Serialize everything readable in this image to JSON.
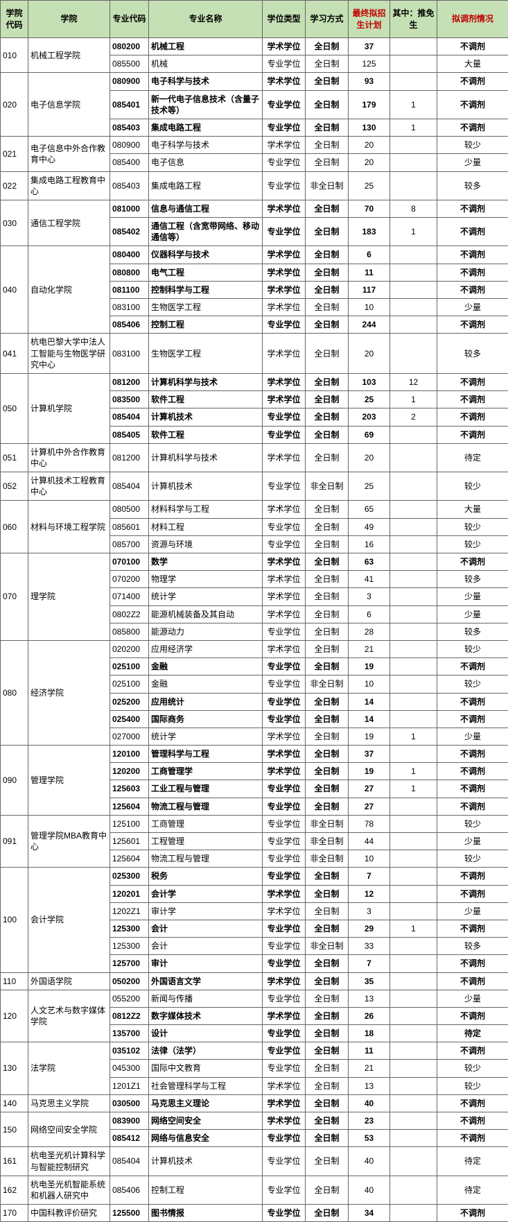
{
  "headers": {
    "collegeCode": "学院代码",
    "college": "学院",
    "majorCode": "专业代码",
    "majorName": "专业名称",
    "degree": "学位类型",
    "mode": "学习方式",
    "plan": "最终拟招生计划",
    "rec": "其中：推免生",
    "adjust": "拟调剂情况"
  },
  "headerStyle": {
    "redColumns": [
      "plan",
      "adjust"
    ]
  },
  "groups": [
    {
      "collegeCode": "010",
      "college": "机械工程学院",
      "rows": [
        {
          "majorCode": "080200",
          "majorName": "机械工程",
          "degree": "学术学位",
          "mode": "全日制",
          "plan": "37",
          "rec": "",
          "adjust": "不调剂",
          "bold": true
        },
        {
          "majorCode": "085500",
          "majorName": "机械",
          "degree": "专业学位",
          "mode": "全日制",
          "plan": "125",
          "rec": "",
          "adjust": "大量"
        }
      ]
    },
    {
      "collegeCode": "020",
      "college": "电子信息学院",
      "rows": [
        {
          "majorCode": "080900",
          "majorName": "电子科学与技术",
          "degree": "学术学位",
          "mode": "全日制",
          "plan": "93",
          "rec": "",
          "adjust": "不调剂",
          "bold": true
        },
        {
          "majorCode": "085401",
          "majorName": "新一代电子信息技术（含量子技术等）",
          "degree": "专业学位",
          "mode": "全日制",
          "plan": "179",
          "rec": "1",
          "adjust": "不调剂",
          "bold": true
        },
        {
          "majorCode": "085403",
          "majorName": "集成电路工程",
          "degree": "专业学位",
          "mode": "全日制",
          "plan": "130",
          "rec": "1",
          "adjust": "不调剂",
          "bold": true
        }
      ]
    },
    {
      "collegeCode": "021",
      "college": "电子信息中外合作教育中心",
      "rows": [
        {
          "majorCode": "080900",
          "majorName": "电子科学与技术",
          "degree": "学术学位",
          "mode": "全日制",
          "plan": "20",
          "rec": "",
          "adjust": "较少"
        },
        {
          "majorCode": "085400",
          "majorName": "电子信息",
          "degree": "专业学位",
          "mode": "全日制",
          "plan": "20",
          "rec": "",
          "adjust": "少量"
        }
      ]
    },
    {
      "collegeCode": "022",
      "college": "集成电路工程教育中心",
      "rows": [
        {
          "majorCode": "085403",
          "majorName": "集成电路工程",
          "degree": "专业学位",
          "mode": "非全日制",
          "plan": "25",
          "rec": "",
          "adjust": "较多"
        }
      ]
    },
    {
      "collegeCode": "030",
      "college": "通信工程学院",
      "rows": [
        {
          "majorCode": "081000",
          "majorName": "信息与通信工程",
          "degree": "学术学位",
          "mode": "全日制",
          "plan": "70",
          "rec": "8",
          "adjust": "不调剂",
          "bold": true
        },
        {
          "majorCode": "085402",
          "majorName": "通信工程（含宽带网络、移动通信等）",
          "degree": "专业学位",
          "mode": "全日制",
          "plan": "183",
          "rec": "1",
          "adjust": "不调剂",
          "bold": true
        }
      ]
    },
    {
      "collegeCode": "040",
      "college": "自动化学院",
      "rows": [
        {
          "majorCode": "080400",
          "majorName": "仪器科学与技术",
          "degree": "学术学位",
          "mode": "全日制",
          "plan": "6",
          "rec": "",
          "adjust": "不调剂",
          "bold": true
        },
        {
          "majorCode": "080800",
          "majorName": "电气工程",
          "degree": "学术学位",
          "mode": "全日制",
          "plan": "11",
          "rec": "",
          "adjust": "不调剂",
          "bold": true
        },
        {
          "majorCode": "081100",
          "majorName": "控制科学与工程",
          "degree": "学术学位",
          "mode": "全日制",
          "plan": "117",
          "rec": "",
          "adjust": "不调剂",
          "bold": true
        },
        {
          "majorCode": "083100",
          "majorName": "生物医学工程",
          "degree": "学术学位",
          "mode": "全日制",
          "plan": "10",
          "rec": "",
          "adjust": "少量"
        },
        {
          "majorCode": "085406",
          "majorName": "控制工程",
          "degree": "专业学位",
          "mode": "全日制",
          "plan": "244",
          "rec": "",
          "adjust": "不调剂",
          "bold": true
        }
      ]
    },
    {
      "collegeCode": "041",
      "college": "杭电巴黎大学中法人工智能与生物医学研究中心",
      "rows": [
        {
          "majorCode": "083100",
          "majorName": "生物医学工程",
          "degree": "学术学位",
          "mode": "全日制",
          "plan": "20",
          "rec": "",
          "adjust": "较多"
        }
      ]
    },
    {
      "collegeCode": "050",
      "college": "计算机学院",
      "rows": [
        {
          "majorCode": "081200",
          "majorName": "计算机科学与技术",
          "degree": "学术学位",
          "mode": "全日制",
          "plan": "103",
          "rec": "12",
          "adjust": "不调剂",
          "bold": true
        },
        {
          "majorCode": "083500",
          "majorName": "软件工程",
          "degree": "学术学位",
          "mode": "全日制",
          "plan": "25",
          "rec": "1",
          "adjust": "不调剂",
          "bold": true
        },
        {
          "majorCode": "085404",
          "majorName": "计算机技术",
          "degree": "专业学位",
          "mode": "全日制",
          "plan": "203",
          "rec": "2",
          "adjust": "不调剂",
          "bold": true
        },
        {
          "majorCode": "085405",
          "majorName": "软件工程",
          "degree": "专业学位",
          "mode": "全日制",
          "plan": "69",
          "rec": "",
          "adjust": "不调剂",
          "bold": true
        }
      ]
    },
    {
      "collegeCode": "051",
      "college": "计算机中外合作教育中心",
      "rows": [
        {
          "majorCode": "081200",
          "majorName": "计算机科学与技术",
          "degree": "学术学位",
          "mode": "全日制",
          "plan": "20",
          "rec": "",
          "adjust": "待定"
        }
      ]
    },
    {
      "collegeCode": "052",
      "college": "计算机技术工程教育中心",
      "rows": [
        {
          "majorCode": "085404",
          "majorName": "计算机技术",
          "degree": "专业学位",
          "mode": "非全日制",
          "plan": "25",
          "rec": "",
          "adjust": "较少"
        }
      ]
    },
    {
      "collegeCode": "060",
      "college": "材料与环境工程学院",
      "rows": [
        {
          "majorCode": "080500",
          "majorName": "材料科学与工程",
          "degree": "学术学位",
          "mode": "全日制",
          "plan": "65",
          "rec": "",
          "adjust": "大量"
        },
        {
          "majorCode": "085601",
          "majorName": "材料工程",
          "degree": "专业学位",
          "mode": "全日制",
          "plan": "49",
          "rec": "",
          "adjust": "较少"
        },
        {
          "majorCode": "085700",
          "majorName": "资源与环境",
          "degree": "专业学位",
          "mode": "全日制",
          "plan": "16",
          "rec": "",
          "adjust": "较少"
        }
      ]
    },
    {
      "collegeCode": "070",
      "college": "理学院",
      "rows": [
        {
          "majorCode": "070100",
          "majorName": "数学",
          "degree": "学术学位",
          "mode": "全日制",
          "plan": "63",
          "rec": "",
          "adjust": "不调剂",
          "bold": true
        },
        {
          "majorCode": "070200",
          "majorName": "物理学",
          "degree": "学术学位",
          "mode": "全日制",
          "plan": "41",
          "rec": "",
          "adjust": "较多"
        },
        {
          "majorCode": "071400",
          "majorName": "统计学",
          "degree": "学术学位",
          "mode": "全日制",
          "plan": "3",
          "rec": "",
          "adjust": "少量"
        },
        {
          "majorCode": "0802Z2",
          "majorName": "能源机械装备及其自动",
          "degree": "学术学位",
          "mode": "全日制",
          "plan": "6",
          "rec": "",
          "adjust": "少量"
        },
        {
          "majorCode": "085800",
          "majorName": "能源动力",
          "degree": "专业学位",
          "mode": "全日制",
          "plan": "28",
          "rec": "",
          "adjust": "较多"
        }
      ]
    },
    {
      "collegeCode": "080",
      "college": "经济学院",
      "rows": [
        {
          "majorCode": "020200",
          "majorName": "应用经济学",
          "degree": "学术学位",
          "mode": "全日制",
          "plan": "21",
          "rec": "",
          "adjust": "较少"
        },
        {
          "majorCode": "025100",
          "majorName": "金融",
          "degree": "专业学位",
          "mode": "全日制",
          "plan": "19",
          "rec": "",
          "adjust": "不调剂",
          "bold": true
        },
        {
          "majorCode": "025100",
          "majorName": "金融",
          "degree": "专业学位",
          "mode": "非全日制",
          "plan": "10",
          "rec": "",
          "adjust": "较少"
        },
        {
          "majorCode": "025200",
          "majorName": "应用统计",
          "degree": "专业学位",
          "mode": "全日制",
          "plan": "14",
          "rec": "",
          "adjust": "不调剂",
          "bold": true
        },
        {
          "majorCode": "025400",
          "majorName": "国际商务",
          "degree": "专业学位",
          "mode": "全日制",
          "plan": "14",
          "rec": "",
          "adjust": "不调剂",
          "bold": true
        },
        {
          "majorCode": "027000",
          "majorName": "统计学",
          "degree": "学术学位",
          "mode": "全日制",
          "plan": "19",
          "rec": "1",
          "adjust": "少量"
        }
      ]
    },
    {
      "collegeCode": "090",
      "college": "管理学院",
      "rows": [
        {
          "majorCode": "120100",
          "majorName": "管理科学与工程",
          "degree": "学术学位",
          "mode": "全日制",
          "plan": "37",
          "rec": "",
          "adjust": "不调剂",
          "bold": true
        },
        {
          "majorCode": "120200",
          "majorName": "工商管理学",
          "degree": "学术学位",
          "mode": "全日制",
          "plan": "19",
          "rec": "1",
          "adjust": "不调剂",
          "bold": true
        },
        {
          "majorCode": "125603",
          "majorName": "工业工程与管理",
          "degree": "专业学位",
          "mode": "全日制",
          "plan": "27",
          "rec": "1",
          "adjust": "不调剂",
          "bold": true
        },
        {
          "majorCode": "125604",
          "majorName": "物流工程与管理",
          "degree": "专业学位",
          "mode": "全日制",
          "plan": "27",
          "rec": "",
          "adjust": "不调剂",
          "bold": true
        }
      ]
    },
    {
      "collegeCode": "091",
      "college": "管理学院MBA教育中心",
      "rows": [
        {
          "majorCode": "125100",
          "majorName": "工商管理",
          "degree": "专业学位",
          "mode": "非全日制",
          "plan": "78",
          "rec": "",
          "adjust": "较少"
        },
        {
          "majorCode": "125601",
          "majorName": "工程管理",
          "degree": "专业学位",
          "mode": "非全日制",
          "plan": "44",
          "rec": "",
          "adjust": "少量"
        },
        {
          "majorCode": "125604",
          "majorName": "物流工程与管理",
          "degree": "专业学位",
          "mode": "非全日制",
          "plan": "10",
          "rec": "",
          "adjust": "较少"
        }
      ]
    },
    {
      "collegeCode": "100",
      "college": "会计学院",
      "rows": [
        {
          "majorCode": "025300",
          "majorName": "税务",
          "degree": "专业学位",
          "mode": "全日制",
          "plan": "7",
          "rec": "",
          "adjust": "不调剂",
          "bold": true
        },
        {
          "majorCode": "120201",
          "majorName": "会计学",
          "degree": "学术学位",
          "mode": "全日制",
          "plan": "12",
          "rec": "",
          "adjust": "不调剂",
          "bold": true
        },
        {
          "majorCode": "1202Z1",
          "majorName": "审计学",
          "degree": "学术学位",
          "mode": "全日制",
          "plan": "3",
          "rec": "",
          "adjust": "少量"
        },
        {
          "majorCode": "125300",
          "majorName": "会计",
          "degree": "专业学位",
          "mode": "全日制",
          "plan": "29",
          "rec": "1",
          "adjust": "不调剂",
          "bold": true
        },
        {
          "majorCode": "125300",
          "majorName": "会计",
          "degree": "专业学位",
          "mode": "非全日制",
          "plan": "33",
          "rec": "",
          "adjust": "较多"
        },
        {
          "majorCode": "125700",
          "majorName": "审计",
          "degree": "专业学位",
          "mode": "全日制",
          "plan": "7",
          "rec": "",
          "adjust": "不调剂",
          "bold": true
        }
      ]
    },
    {
      "collegeCode": "110",
      "college": "外国语学院",
      "rows": [
        {
          "majorCode": "050200",
          "majorName": "外国语言文学",
          "degree": "学术学位",
          "mode": "全日制",
          "plan": "35",
          "rec": "",
          "adjust": "不调剂",
          "bold": true
        }
      ]
    },
    {
      "collegeCode": "120",
      "college": "人文艺术与数字媒体学院",
      "rows": [
        {
          "majorCode": "055200",
          "majorName": "新闻与传播",
          "degree": "专业学位",
          "mode": "全日制",
          "plan": "13",
          "rec": "",
          "adjust": "少量"
        },
        {
          "majorCode": "0812Z2",
          "majorName": "数字媒体技术",
          "degree": "学术学位",
          "mode": "全日制",
          "plan": "26",
          "rec": "",
          "adjust": "不调剂",
          "bold": true
        },
        {
          "majorCode": "135700",
          "majorName": "设计",
          "degree": "专业学位",
          "mode": "全日制",
          "plan": "18",
          "rec": "",
          "adjust": "待定",
          "bold": true
        }
      ]
    },
    {
      "collegeCode": "130",
      "college": "法学院",
      "rows": [
        {
          "majorCode": "035102",
          "majorName": "法律（法学）",
          "degree": "专业学位",
          "mode": "全日制",
          "plan": "11",
          "rec": "",
          "adjust": "不调剂",
          "bold": true
        },
        {
          "majorCode": "045300",
          "majorName": "国际中文教育",
          "degree": "专业学位",
          "mode": "全日制",
          "plan": "21",
          "rec": "",
          "adjust": "较少"
        },
        {
          "majorCode": "1201Z1",
          "majorName": "社会管理科学与工程",
          "degree": "学术学位",
          "mode": "全日制",
          "plan": "13",
          "rec": "",
          "adjust": "较少"
        }
      ]
    },
    {
      "collegeCode": "140",
      "college": "马克思主义学院",
      "rows": [
        {
          "majorCode": "030500",
          "majorName": "马克思主义理论",
          "degree": "学术学位",
          "mode": "全日制",
          "plan": "40",
          "rec": "",
          "adjust": "不调剂",
          "bold": true
        }
      ]
    },
    {
      "collegeCode": "150",
      "college": "网络空间安全学院",
      "rows": [
        {
          "majorCode": "083900",
          "majorName": "网络空间安全",
          "degree": "学术学位",
          "mode": "全日制",
          "plan": "23",
          "rec": "",
          "adjust": "不调剂",
          "bold": true
        },
        {
          "majorCode": "085412",
          "majorName": "网络与信息安全",
          "degree": "专业学位",
          "mode": "全日制",
          "plan": "53",
          "rec": "",
          "adjust": "不调剂",
          "bold": true
        }
      ]
    },
    {
      "collegeCode": "161",
      "college": "杭电圣光机计算科学与智能控制研究",
      "rows": [
        {
          "majorCode": "085404",
          "majorName": "计算机技术",
          "degree": "专业学位",
          "mode": "全日制",
          "plan": "40",
          "rec": "",
          "adjust": "待定"
        }
      ]
    },
    {
      "collegeCode": "162",
      "college": "杭电圣光机智能系统和机器人研究中",
      "rows": [
        {
          "majorCode": "085406",
          "majorName": "控制工程",
          "degree": "专业学位",
          "mode": "全日制",
          "plan": "40",
          "rec": "",
          "adjust": "待定"
        }
      ]
    },
    {
      "collegeCode": "170",
      "college": "中国科教评价研究",
      "rows": [
        {
          "majorCode": "125500",
          "majorName": "图书情报",
          "degree": "专业学位",
          "mode": "全日制",
          "plan": "34",
          "rec": "",
          "adjust": "不调剂",
          "bold": true
        }
      ]
    }
  ]
}
